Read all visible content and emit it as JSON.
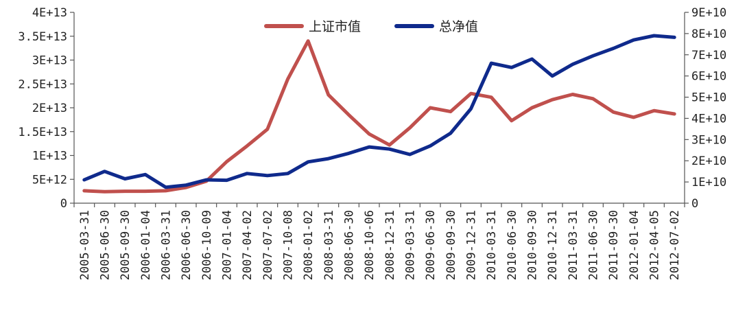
{
  "chart_data": {
    "type": "line",
    "categories": [
      "2005-03-31",
      "2005-06-30",
      "2005-09-30",
      "2006-01-04",
      "2006-03-31",
      "2006-06-30",
      "2006-10-09",
      "2007-01-04",
      "2007-04-02",
      "2007-07-02",
      "2007-10-08",
      "2008-01-02",
      "2008-03-31",
      "2008-06-30",
      "2008-10-06",
      "2008-12-31",
      "2009-03-31",
      "2009-06-30",
      "2009-09-30",
      "2009-12-31",
      "2010-03-31",
      "2010-06-30",
      "2010-09-30",
      "2010-12-31",
      "2011-03-31",
      "2011-06-30",
      "2011-09-30",
      "2012-01-04",
      "2012-04-05",
      "2012-07-02"
    ],
    "series": [
      {
        "name": "上证市值",
        "axis": "left",
        "color": "#c0504d",
        "values": [
          2600000000000.0,
          2400000000000.0,
          2500000000000.0,
          2500000000000.0,
          2600000000000.0,
          3300000000000.0,
          4600000000000.0,
          8700000000000.0,
          12000000000000.0,
          15500000000000.0,
          26000000000000.0,
          34000000000000.0,
          22700000000000.0,
          18500000000000.0,
          14500000000000.0,
          12200000000000.0,
          15800000000000.0,
          20000000000000.0,
          19200000000000.0,
          23000000000000.0,
          22200000000000.0,
          17300000000000.0,
          20000000000000.0,
          21700000000000.0,
          22800000000000.0,
          21900000000000.0,
          19100000000000.0,
          18000000000000.0,
          19400000000000.0,
          18700000000000.0
        ]
      },
      {
        "name": "总净值",
        "axis": "right",
        "color": "#0f2a8c",
        "values": [
          11000000000.0,
          15000000000.0,
          11500000000.0,
          13500000000.0,
          7500000000.0,
          8500000000.0,
          11000000000.0,
          10800000000.0,
          14000000000.0,
          13000000000.0,
          14000000000.0,
          19500000000.0,
          21000000000.0,
          23500000000.0,
          26500000000.0,
          25500000000.0,
          23000000000.0,
          27000000000.0,
          33000000000.0,
          44500000000.0,
          66000000000.0,
          64000000000.0,
          68000000000.0,
          60000000000.0,
          65500000000.0,
          69500000000.0,
          73000000000.0,
          77000000000.0,
          79000000000.0,
          78200000000.0
        ]
      }
    ],
    "y_left": {
      "ylim": [
        0,
        40000000000000.0
      ],
      "tick_labels": [
        "0",
        "5E+12",
        "1E+13",
        "1.5E+13",
        "2E+13",
        "2.5E+13",
        "3E+13",
        "3.5E+13",
        "4E+13"
      ]
    },
    "y_right": {
      "ylim": [
        0,
        90000000000.0
      ],
      "tick_labels": [
        "0",
        "1E+10",
        "2E+10",
        "3E+10",
        "4E+10",
        "5E+10",
        "6E+10",
        "7E+10",
        "8E+10",
        "9E+10"
      ]
    },
    "title": "",
    "xlabel": "",
    "ylabel": "",
    "grid": false,
    "legend_position": "top-center"
  }
}
